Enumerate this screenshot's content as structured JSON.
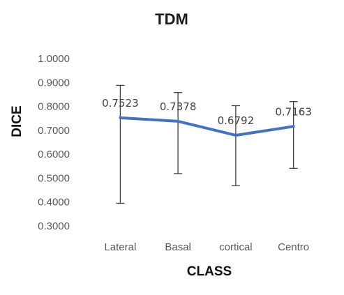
{
  "chart_data": {
    "type": "line",
    "title": "TDM",
    "xlabel": "CLASS",
    "ylabel": "DICE",
    "categories": [
      "Lateral",
      "Basal",
      "cortical",
      "Centro"
    ],
    "series": [
      {
        "values": [
          0.7523,
          0.7378,
          0.6792,
          0.7163
        ],
        "error_upper": [
          0.888,
          0.858,
          0.803,
          0.82
        ],
        "error_lower": [
          0.395,
          0.519,
          0.468,
          0.541
        ],
        "data_labels": [
          "0.7523",
          "0.7378",
          "0.6792",
          "0.7163"
        ]
      }
    ],
    "ylim": [
      0.3,
      1.0
    ],
    "y_ticks": [
      "0.3000",
      "0.4000",
      "0.5000",
      "0.6000",
      "0.7000",
      "0.8000",
      "0.9000",
      "1.0000"
    ],
    "grid": false,
    "line_color": "#4472C4",
    "error_bar_color": "#404040"
  }
}
